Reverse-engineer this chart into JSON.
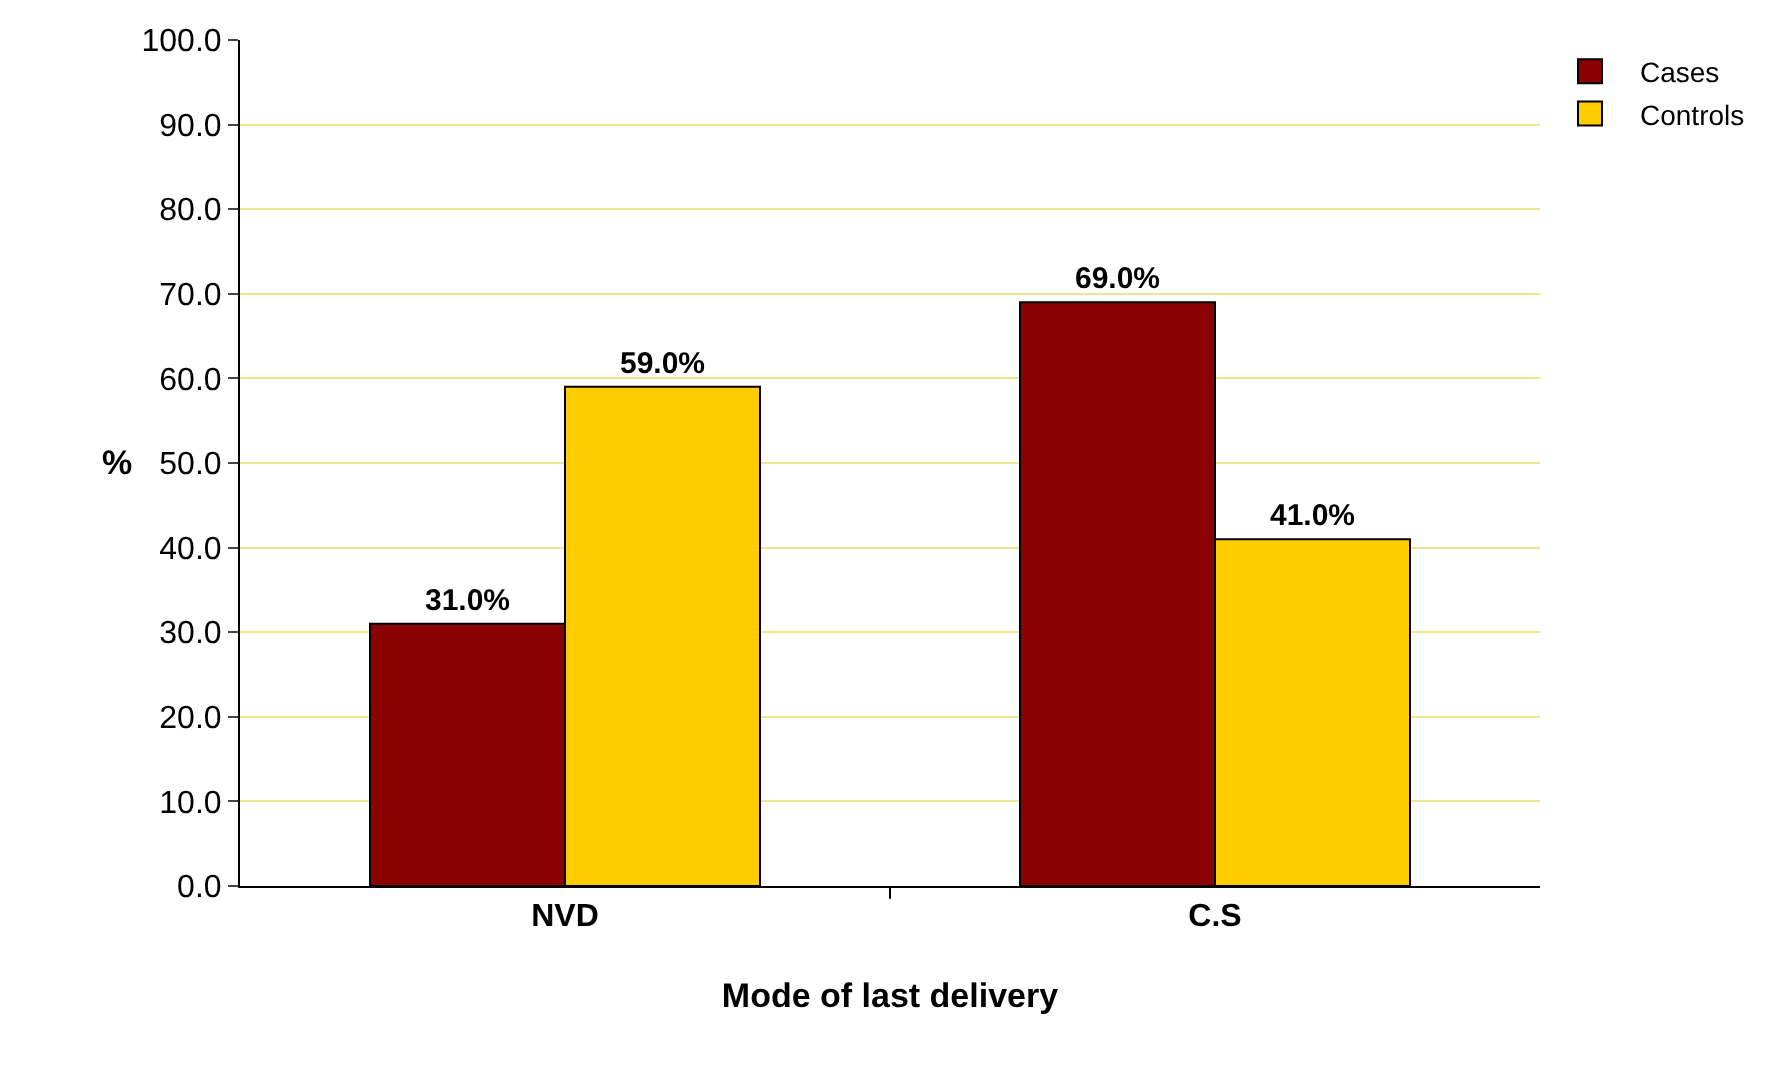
{
  "chart_data": {
    "type": "bar",
    "xlabel": "Mode of last delivery",
    "ylabel": "%",
    "categories": [
      "NVD",
      "C.S"
    ],
    "series": [
      {
        "name": "Cases",
        "color": "#8b0000",
        "values": [
          31.0,
          69.0
        ],
        "value_labels": [
          "31.0%",
          "69.0%"
        ]
      },
      {
        "name": "Controls",
        "color": "#ffcc00",
        "values": [
          59.0,
          41.0
        ],
        "value_labels": [
          "59.0%",
          "41.0%"
        ]
      }
    ],
    "ylim": [
      0,
      100
    ],
    "yticks": [
      {
        "value": 0,
        "label": "0.0"
      },
      {
        "value": 10,
        "label": "10.0"
      },
      {
        "value": 20,
        "label": "20.0"
      },
      {
        "value": 30,
        "label": "30.0"
      },
      {
        "value": 40,
        "label": "40.0"
      },
      {
        "value": 50,
        "label": "50.0"
      },
      {
        "value": 60,
        "label": "60.0"
      },
      {
        "value": 70,
        "label": "70.0"
      },
      {
        "value": 80,
        "label": "80.0"
      },
      {
        "value": 90,
        "label": "90.0"
      },
      {
        "value": 100,
        "label": "100.0"
      }
    ],
    "grid": "y",
    "legend": "top right"
  }
}
